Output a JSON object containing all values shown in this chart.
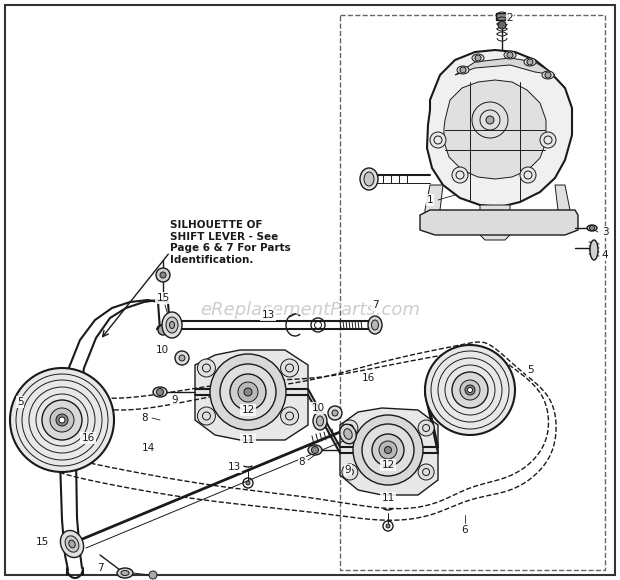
{
  "bg_color": "#ffffff",
  "line_color": "#1a1a1a",
  "watermark_text": "eReplacementParts.com",
  "watermark_color": "#c8c8c8",
  "silhouette_text": "SILHOUETTE OF\nSHIFT LEVER - See\nPage 6 & 7 For Parts\nIdentification.",
  "border_dashed_color": "#888888",
  "figsize": [
    6.2,
    5.8
  ],
  "dpi": 100
}
